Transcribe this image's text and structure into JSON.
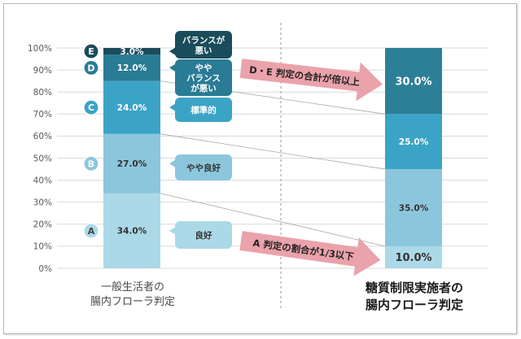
{
  "chart_data": {
    "type": "bar",
    "stacked": true,
    "grid": true,
    "ylim": [
      0,
      100
    ],
    "ytick_labels": [
      "0%",
      "10%",
      "20%",
      "30%",
      "40%",
      "50%",
      "60%",
      "70%",
      "80%",
      "90%",
      "100%"
    ],
    "categories": [
      [
        "一般生活者の",
        "腸内フローラ判定"
      ],
      [
        "糖質制限実施者の",
        "腸内フローラ判定"
      ]
    ],
    "series": [
      {
        "name": "A",
        "callout": [
          "良好"
        ],
        "color": "#acd9e7",
        "text_color": "#333333",
        "badge_text_color": "#444444",
        "values": [
          34.0,
          10.0
        ],
        "data_labels": [
          "34.0%",
          "10.0%"
        ]
      },
      {
        "name": "B",
        "callout": [
          "やや良好"
        ],
        "color": "#8cc6dc",
        "text_color": "#333333",
        "badge_text_color": "#ffffff",
        "values": [
          27.0,
          35.0
        ],
        "data_labels": [
          "27.0%",
          "35.0%"
        ]
      },
      {
        "name": "C",
        "callout": [
          "標準的"
        ],
        "color": "#3ba4c6",
        "text_color": "#ffffff",
        "badge_text_color": "#ffffff",
        "values": [
          24.0,
          25.0
        ],
        "data_labels": [
          "24.0%",
          "25.0%"
        ]
      },
      {
        "name": "D",
        "callout": [
          "やや",
          "バランス",
          "が悪い"
        ],
        "color": "#2a7b95",
        "text_color": "#ffffff",
        "badge_text_color": "#ffffff",
        "values": [
          12.0,
          null
        ],
        "data_labels": [
          "12.0%",
          null
        ]
      },
      {
        "name": "E",
        "callout": [
          "バランスが",
          "悪い"
        ],
        "color": "#1a4c5b",
        "text_color": "#ffffff",
        "badge_text_color": "#ffffff",
        "values": [
          3.0,
          null
        ],
        "data_labels": [
          "3.0%",
          null
        ]
      },
      {
        "color": "#2d7f98",
        "text_color": "#ffffff",
        "values": [
          null,
          30.0
        ],
        "data_labels": [
          null,
          "30.0%"
        ]
      }
    ],
    "annotations": [
      {
        "text": "D・E 判定の合計が倍以上",
        "color": "#eaa2ab"
      },
      {
        "text": "A 判定の割合が1/3以下",
        "color": "#eaa2ab"
      }
    ]
  }
}
